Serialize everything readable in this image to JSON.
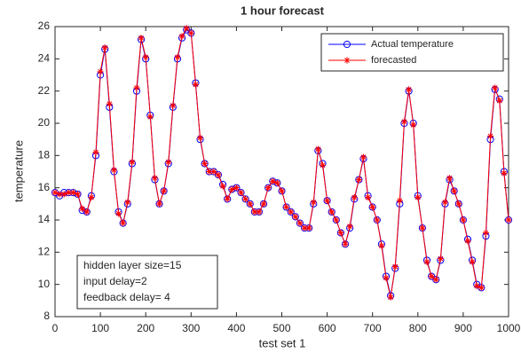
{
  "chart_data": {
    "type": "line",
    "title": "1 hour forecast",
    "xlabel": "test set 1",
    "ylabel": "temperature",
    "x": [
      0,
      10,
      20,
      30,
      40,
      50,
      60,
      70,
      80,
      90,
      100,
      110,
      120,
      130,
      140,
      150,
      160,
      170,
      180,
      190,
      200,
      210,
      220,
      230,
      240,
      250,
      260,
      270,
      280,
      290,
      300,
      310,
      320,
      330,
      340,
      350,
      360,
      370,
      380,
      390,
      400,
      410,
      420,
      430,
      440,
      450,
      460,
      470,
      480,
      490,
      500,
      510,
      520,
      530,
      540,
      550,
      560,
      570,
      580,
      590,
      600,
      610,
      620,
      630,
      640,
      650,
      660,
      670,
      680,
      690,
      700,
      710,
      720,
      730,
      740,
      750,
      760,
      770,
      780,
      790,
      800,
      810,
      820,
      830,
      840,
      850,
      860,
      870,
      880,
      890,
      900,
      910,
      920,
      930,
      940,
      950,
      960,
      970,
      980,
      990,
      1000
    ],
    "series": [
      {
        "name": "Actual temperature",
        "color": "#0000ff",
        "marker": "circle",
        "values": [
          15.7,
          15.5,
          15.7,
          15.7,
          15.7,
          15.6,
          14.6,
          14.5,
          15.5,
          18,
          23,
          24.6,
          21,
          17,
          14.5,
          13.8,
          15,
          17.5,
          22,
          25.2,
          24,
          20.5,
          16.5,
          15,
          15.8,
          17.5,
          21,
          24,
          25.3,
          25.8,
          25.6,
          22.5,
          19,
          17.5,
          17,
          17,
          16.8,
          16.2,
          15.3,
          15.9,
          16,
          15.7,
          15.3,
          15,
          14.5,
          14.5,
          15,
          16,
          16.4,
          16.3,
          15.8,
          14.8,
          14.5,
          14.2,
          13.8,
          13.5,
          13.5,
          15,
          18.3,
          17.5,
          15.2,
          14.5,
          14,
          13.2,
          12.5,
          13.5,
          15.3,
          16.5,
          17.8,
          15.5,
          14.8,
          14,
          12.5,
          10.5,
          9.3,
          11,
          15,
          20,
          22,
          20,
          15.5,
          13.5,
          11.5,
          10.5,
          10.3,
          11.5,
          15,
          16.5,
          15.8,
          15,
          14,
          12.8,
          11.5,
          10,
          9.8,
          13,
          19,
          22.1,
          21.5,
          17,
          14
        ]
      },
      {
        "name": "forecasted",
        "color": "#ff0000",
        "marker": "asterisk",
        "values": [
          15.7,
          15.6,
          15.6,
          15.7,
          15.7,
          15.6,
          14.7,
          14.5,
          15.4,
          18.2,
          23.2,
          24.7,
          21.2,
          17.1,
          14.4,
          13.8,
          15.1,
          17.6,
          22.2,
          25.3,
          24.1,
          20.4,
          16.6,
          15,
          15.8,
          17.6,
          21.1,
          24.1,
          25.4,
          25.9,
          25.6,
          22.4,
          19.1,
          17.5,
          17,
          17,
          16.8,
          16.1,
          15.3,
          15.9,
          16,
          15.7,
          15.3,
          15,
          14.5,
          14.5,
          15,
          16,
          16.4,
          16.3,
          15.8,
          14.8,
          14.5,
          14.2,
          13.8,
          13.5,
          13.5,
          15.1,
          18.4,
          17.4,
          15.2,
          14.5,
          14,
          13.2,
          12.5,
          13.6,
          15.4,
          16.5,
          17.9,
          15.4,
          14.8,
          14,
          12.4,
          10.4,
          9.2,
          11.1,
          15.2,
          20.1,
          22.1,
          19.9,
          15.4,
          13.5,
          11.4,
          10.5,
          10.3,
          11.6,
          15.1,
          16.6,
          15.8,
          15,
          14,
          12.7,
          11.4,
          9.9,
          9.8,
          13.2,
          19.2,
          22.2,
          21.4,
          16.9,
          14
        ]
      }
    ],
    "xlim": [
      0,
      1000
    ],
    "ylim": [
      8,
      26
    ],
    "xticks": [
      0,
      100,
      200,
      300,
      400,
      500,
      600,
      700,
      800,
      900,
      1000
    ],
    "yticks": [
      8,
      10,
      12,
      14,
      16,
      18,
      20,
      22,
      24,
      26
    ],
    "legend": "northeast",
    "annotation": [
      "hidden layer size=15",
      "input delay=2",
      "feedback delay= 4"
    ]
  }
}
